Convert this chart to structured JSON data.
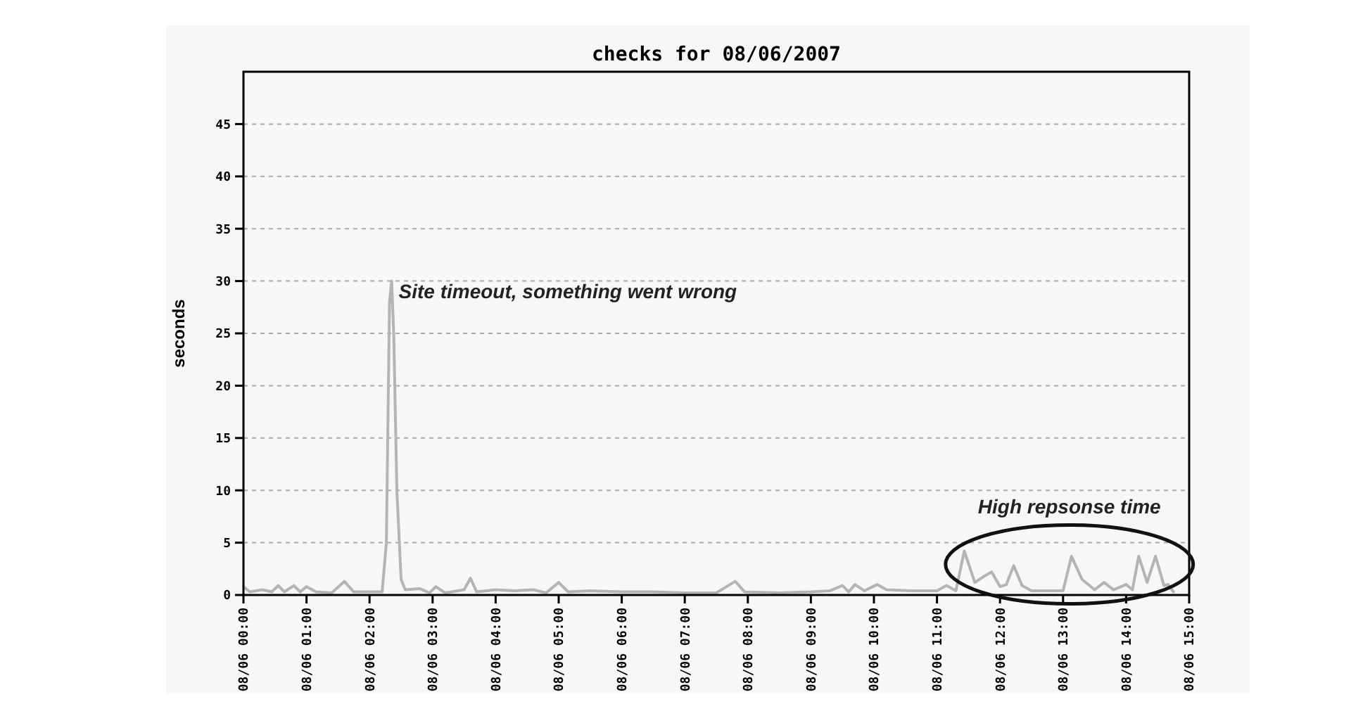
{
  "chart_data": {
    "type": "line",
    "title": "checks for 08/06/2007",
    "ylabel": "seconds",
    "x": [
      "2007-08-06T00:00",
      "2007-08-06T00:06",
      "2007-08-06T00:18",
      "2007-08-06T00:27",
      "2007-08-06T00:33",
      "2007-08-06T00:39",
      "2007-08-06T00:48",
      "2007-08-06T00:54",
      "2007-08-06T01:00",
      "2007-08-06T01:09",
      "2007-08-06T01:24",
      "2007-08-06T01:36",
      "2007-08-06T01:45",
      "2007-08-06T02:00",
      "2007-08-06T02:12",
      "2007-08-06T02:16",
      "2007-08-06T02:19",
      "2007-08-06T02:21",
      "2007-08-06T02:23",
      "2007-08-06T02:26",
      "2007-08-06T02:30",
      "2007-08-06T02:34",
      "2007-08-06T02:48",
      "2007-08-06T02:57",
      "2007-08-06T03:03",
      "2007-08-06T03:12",
      "2007-08-06T03:30",
      "2007-08-06T03:36",
      "2007-08-06T03:42",
      "2007-08-06T04:00",
      "2007-08-06T04:18",
      "2007-08-06T04:36",
      "2007-08-06T04:48",
      "2007-08-06T05:00",
      "2007-08-06T05:09",
      "2007-08-06T05:30",
      "2007-08-06T06:00",
      "2007-08-06T06:30",
      "2007-08-06T07:00",
      "2007-08-06T07:30",
      "2007-08-06T07:48",
      "2007-08-06T07:57",
      "2007-08-06T08:30",
      "2007-08-06T09:00",
      "2007-08-06T09:18",
      "2007-08-06T09:30",
      "2007-08-06T09:36",
      "2007-08-06T09:42",
      "2007-08-06T09:51",
      "2007-08-06T10:03",
      "2007-08-06T10:12",
      "2007-08-06T10:36",
      "2007-08-06T11:00",
      "2007-08-06T11:09",
      "2007-08-06T11:18",
      "2007-08-06T11:26",
      "2007-08-06T11:36",
      "2007-08-06T11:45",
      "2007-08-06T11:52",
      "2007-08-06T12:00",
      "2007-08-06T12:06",
      "2007-08-06T12:13",
      "2007-08-06T12:21",
      "2007-08-06T12:30",
      "2007-08-06T13:00",
      "2007-08-06T13:08",
      "2007-08-06T13:18",
      "2007-08-06T13:30",
      "2007-08-06T13:39",
      "2007-08-06T13:48",
      "2007-08-06T14:00",
      "2007-08-06T14:06",
      "2007-08-06T14:12",
      "2007-08-06T14:20",
      "2007-08-06T14:28",
      "2007-08-06T14:36",
      "2007-08-06T14:40",
      "2007-08-06T14:45"
    ],
    "series": [
      {
        "color": "#b4b4b4",
        "values": [
          0.8,
          0.3,
          0.5,
          0.3,
          0.9,
          0.3,
          0.9,
          0.3,
          0.8,
          0.3,
          0.2,
          1.3,
          0.3,
          0.3,
          0.3,
          5,
          28,
          30,
          25,
          10,
          1.5,
          0.5,
          0.6,
          0.2,
          0.8,
          0.2,
          0.5,
          1.6,
          0.3,
          0.5,
          0.4,
          0.5,
          0.2,
          1.2,
          0.3,
          0.4,
          0.3,
          0.3,
          0.2,
          0.2,
          1.3,
          0.3,
          0.2,
          0.3,
          0.4,
          0.9,
          0.3,
          1.0,
          0.4,
          1.0,
          0.5,
          0.4,
          0.4,
          0.9,
          0.4,
          4.2,
          1.2,
          1.8,
          2.2,
          0.8,
          1.0,
          2.8,
          0.9,
          0.4,
          0.4,
          3.7,
          1.5,
          0.5,
          1.2,
          0.5,
          1.0,
          0.5,
          3.7,
          1.2,
          3.7,
          0.9,
          1.0,
          0.3
        ]
      }
    ],
    "xlim": [
      "2007-08-06T00:00",
      "2007-08-06T15:00"
    ],
    "xticks": [
      {
        "value": "2007-08-06T00:00",
        "label": "08/06 00:00"
      },
      {
        "value": "2007-08-06T01:00",
        "label": "08/06 01:00"
      },
      {
        "value": "2007-08-06T02:00",
        "label": "08/06 02:00"
      },
      {
        "value": "2007-08-06T03:00",
        "label": "08/06 03:00"
      },
      {
        "value": "2007-08-06T04:00",
        "label": "08/06 04:00"
      },
      {
        "value": "2007-08-06T05:00",
        "label": "08/06 05:00"
      },
      {
        "value": "2007-08-06T06:00",
        "label": "08/06 06:00"
      },
      {
        "value": "2007-08-06T07:00",
        "label": "08/06 07:00"
      },
      {
        "value": "2007-08-06T08:00",
        "label": "08/06 08:00"
      },
      {
        "value": "2007-08-06T09:00",
        "label": "08/06 09:00"
      },
      {
        "value": "2007-08-06T10:00",
        "label": "08/06 10:00"
      },
      {
        "value": "2007-08-06T11:00",
        "label": "08/06 11:00"
      },
      {
        "value": "2007-08-06T12:00",
        "label": "08/06 12:00"
      },
      {
        "value": "2007-08-06T13:00",
        "label": "08/06 13:00"
      },
      {
        "value": "2007-08-06T14:00",
        "label": "08/06 14:00"
      },
      {
        "value": "2007-08-06T15:00",
        "label": "08/06 15:00"
      }
    ],
    "ylim": [
      0,
      50
    ],
    "yticks": [
      0,
      5,
      10,
      15,
      20,
      25,
      30,
      35,
      40,
      45
    ],
    "grid": "y",
    "line_style": "solid",
    "marker": "none",
    "annotations": [
      {
        "text": "Site timeout, something went wrong",
        "x": "2007-08-06T02:21",
        "y": 30
      },
      {
        "text": "High repsonse time",
        "x": "2007-08-06T13:06",
        "y": 4
      }
    ]
  }
}
